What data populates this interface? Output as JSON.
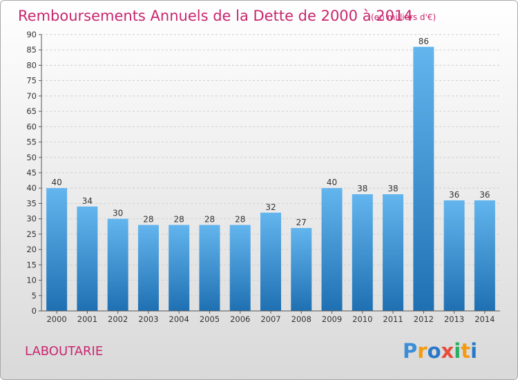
{
  "chart_data": {
    "type": "bar",
    "title": "Remboursements Annuels de la Dette de 2000 à 2014",
    "subtitle": "(en milliers d'€)",
    "categories": [
      "2000",
      "2001",
      "2002",
      "2003",
      "2004",
      "2005",
      "2006",
      "2007",
      "2008",
      "2009",
      "2010",
      "2011",
      "2012",
      "2013",
      "2014"
    ],
    "values": [
      40,
      34,
      30,
      28,
      28,
      28,
      28,
      32,
      27,
      40,
      38,
      38,
      86,
      36,
      36
    ],
    "ylim": [
      0,
      90
    ],
    "ytick_step": 5,
    "xlabel": "",
    "ylabel": "",
    "grid": true
  },
  "footer": {
    "commune": "LABOUTARIE",
    "logo_letters": [
      {
        "ch": "P",
        "color": "#3a8fd8"
      },
      {
        "ch": "r",
        "color": "#f39c12"
      },
      {
        "ch": "o",
        "color": "#2a78c8"
      },
      {
        "ch": "x",
        "color": "#e74c3c"
      },
      {
        "ch": "i",
        "color": "#27ae60"
      },
      {
        "ch": "t",
        "color": "#f39c12"
      },
      {
        "ch": "i",
        "color": "#2a78c8"
      }
    ]
  },
  "colors": {
    "bar_light": "#63b5ee",
    "bar_dark": "#1f70b2",
    "accent": "#c8266e"
  }
}
